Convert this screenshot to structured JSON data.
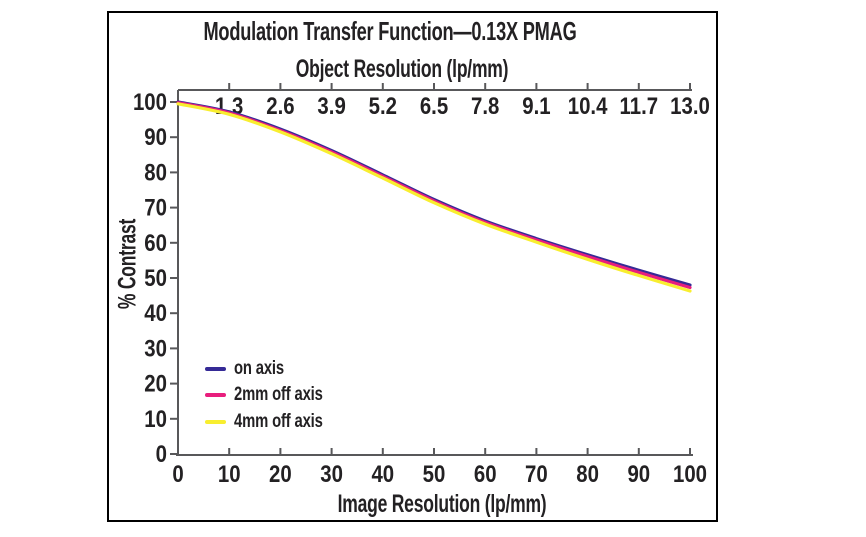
{
  "panel": {
    "background": "#ffffff",
    "border_color": "#000000"
  },
  "chart_data": {
    "type": "line",
    "title": "Modulation Transfer Function—0.13X PMAG",
    "top_axis": {
      "label": "Object Resolution (lp/mm)",
      "tick_labels": [
        "1.3",
        "2.6",
        "3.9",
        "5.2",
        "6.5",
        "7.8",
        "9.1",
        "10.4",
        "11.7",
        "13.0"
      ],
      "tick_positions": [
        10,
        20,
        30,
        40,
        50,
        60,
        70,
        80,
        90,
        100
      ]
    },
    "xlabel": "Image Resolution (lp/mm)",
    "ylabel": "% Contrast",
    "xlim": [
      0,
      100
    ],
    "ylim": [
      0,
      100
    ],
    "x_ticks": [
      "0",
      "10",
      "20",
      "30",
      "40",
      "50",
      "60",
      "70",
      "80",
      "90",
      "100"
    ],
    "y_ticks": [
      "0",
      "10",
      "20",
      "30",
      "40",
      "50",
      "60",
      "70",
      "80",
      "90",
      "100"
    ],
    "grid": false,
    "legend_position": "lower-left",
    "axis_color": "#58585a",
    "text_color": "#232123",
    "x": [
      0,
      10,
      20,
      30,
      40,
      50,
      60,
      70,
      80,
      90,
      100
    ],
    "series": [
      {
        "name": "on axis",
        "color": "#352a96",
        "values": [
          100,
          97.2,
          92.3,
          86.2,
          79.3,
          72.3,
          66.2,
          61.2,
          56.6,
          52.2,
          48.0
        ]
      },
      {
        "name": "2mm off axis",
        "color": "#e81e7d",
        "values": [
          99.8,
          96.9,
          91.9,
          85.8,
          78.9,
          71.9,
          65.8,
          60.8,
          56.1,
          51.6,
          47.3
        ]
      },
      {
        "name": "4mm off axis",
        "color": "#f8ee2f",
        "values": [
          99.5,
          96.5,
          91.5,
          85.3,
          78.4,
          71.4,
          65.3,
          60.2,
          55.3,
          50.7,
          46.3
        ]
      }
    ]
  }
}
